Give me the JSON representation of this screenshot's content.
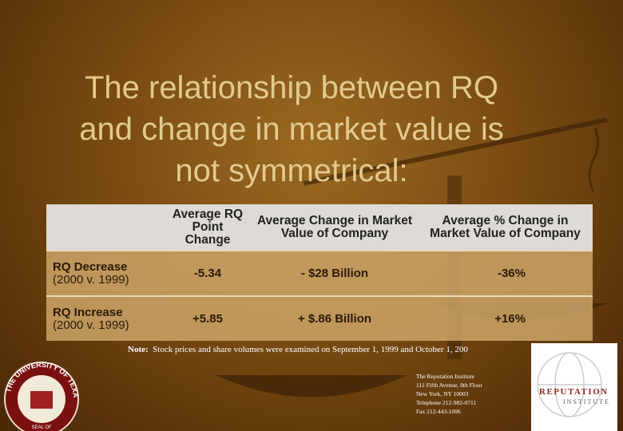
{
  "title_lines": [
    "The relationship between RQ",
    "and change in market value is",
    "not symmetrical:"
  ],
  "table": {
    "headers": [
      "Average RQ Point Change",
      "Average Change in Market Value of Company",
      "Average % Change in Market Value of Company"
    ],
    "rows": [
      {
        "label": "RQ Decrease",
        "sublabel": "(2000 v. 1999)",
        "cells": [
          "-5.34",
          "- $28 Billion",
          "-36%"
        ]
      },
      {
        "label": "RQ Increase",
        "sublabel": "(2000 v. 1999)",
        "cells": [
          "+5.85",
          "+ $.86 Billion",
          "+16%"
        ]
      }
    ]
  },
  "note": {
    "label": "Note:",
    "text": "Stock prices and share volumes were examined on September 1, 1999 and October 1, 200"
  },
  "address": [
    "The Reputation Institute",
    "111 Fifth Avenue, 8th Floor",
    "New York, NY 10003",
    "Telephone 212-982-0711",
    "Fax 212-443-1006"
  ],
  "logo": {
    "name": "REPUTATION",
    "sub": "INSTITUTE"
  },
  "seal": {
    "text": "THE UNIVERSITY OF TEXAS",
    "side": "SEAL OF"
  }
}
